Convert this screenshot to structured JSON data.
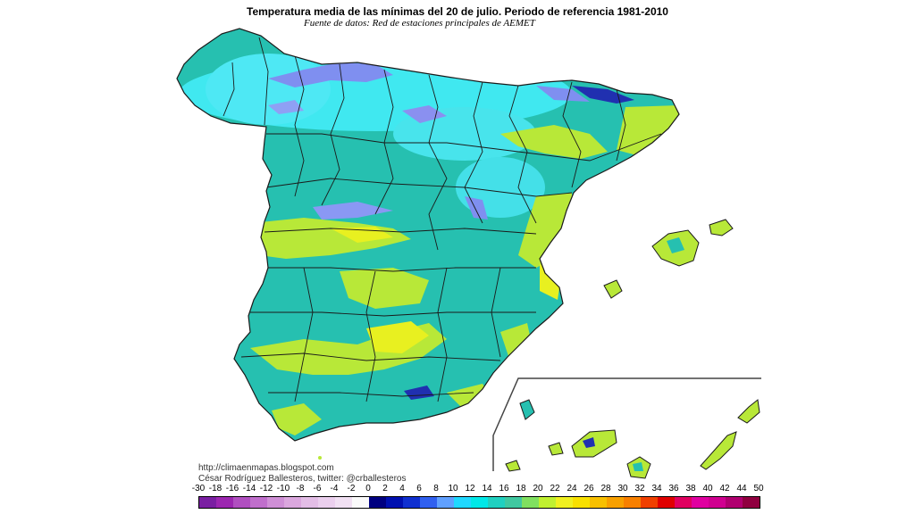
{
  "title": "Temperatura media de las mínimas del 20 de julio. Periodo de referencia 1981-2010",
  "source": "Fuente de datos: Red de estaciones principales de AEMET",
  "credits": {
    "url": "http://climaenmapas.blogspot.com",
    "author": "César Rodríguez Ballesteros, twitter: @crballesteros"
  },
  "legend": {
    "labels": [
      "-30",
      "-18",
      "-16",
      "-14",
      "-12",
      "-10",
      "-8",
      "-6",
      "-4",
      "-2",
      "0",
      "2",
      "4",
      "6",
      "8",
      "10",
      "12",
      "14",
      "16",
      "18",
      "20",
      "22",
      "24",
      "26",
      "28",
      "30",
      "32",
      "34",
      "36",
      "38",
      "40",
      "42",
      "44",
      "50"
    ],
    "colors": [
      "#7a1fa2",
      "#9c27b0",
      "#b04fc0",
      "#c06fcc",
      "#cf8fd6",
      "#dba7de",
      "#e3bde6",
      "#ebcfee",
      "#f1e0f3",
      "#fafafa",
      "#000080",
      "#0010b0",
      "#1030d0",
      "#3060f0",
      "#60a0ff",
      "#20d8ff",
      "#00e8e8",
      "#20d0c0",
      "#40c8a0",
      "#80e060",
      "#c0f030",
      "#f0f020",
      "#f8e000",
      "#f8c000",
      "#f8a000",
      "#f88000",
      "#f04000",
      "#e00000",
      "#e00060",
      "#e000a0",
      "#d00090",
      "#b00070",
      "#900040"
    ]
  },
  "colors": {
    "base": "#26c0b0",
    "cold": "#40e8f0",
    "very_cold": "#7f8ff0",
    "coldest": "#2030b0",
    "warm": "#b8e838",
    "hot": "#e8f020",
    "border": "#1a1a1a"
  }
}
